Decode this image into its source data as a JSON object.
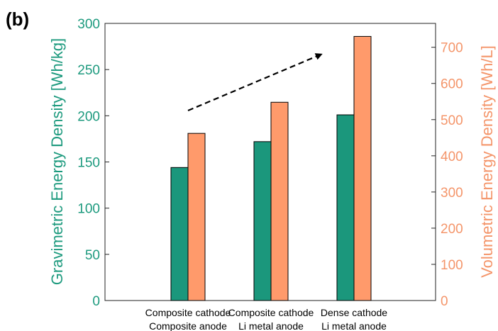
{
  "panel_label": "(b)",
  "colors": {
    "left_axis": "#1d9a7e",
    "right_axis": "#f4956a",
    "gravimetric_bar": "#1b977c",
    "volumetric_bar": "#ff9a6b",
    "arrow": "#000000"
  },
  "chart_data": {
    "type": "bar",
    "categories": [
      [
        "Composite cathode",
        "Composite anode"
      ],
      [
        "Composite cathode",
        "Li metal anode"
      ],
      [
        "Dense cathode",
        "Li metal anode"
      ]
    ],
    "series": [
      {
        "axis": "left",
        "values": [
          144,
          172,
          201
        ]
      },
      {
        "axis": "right",
        "values": [
          462,
          548,
          730
        ]
      }
    ],
    "ylabel_left": "Gravimetric Energy Density [Wh/kg]",
    "ylabel_right": "Volumetric Energy Density [Wh/L]",
    "ylim_left": [
      0,
      300
    ],
    "ylim_right": [
      0,
      766
    ],
    "yticks_left": [
      0,
      50,
      100,
      150,
      200,
      250,
      300
    ],
    "yticks_right": [
      0,
      100,
      200,
      300,
      400,
      500,
      600,
      700
    ],
    "grid": false,
    "legend": "none",
    "annotation": "dashed arrow indicating increasing energy density"
  }
}
